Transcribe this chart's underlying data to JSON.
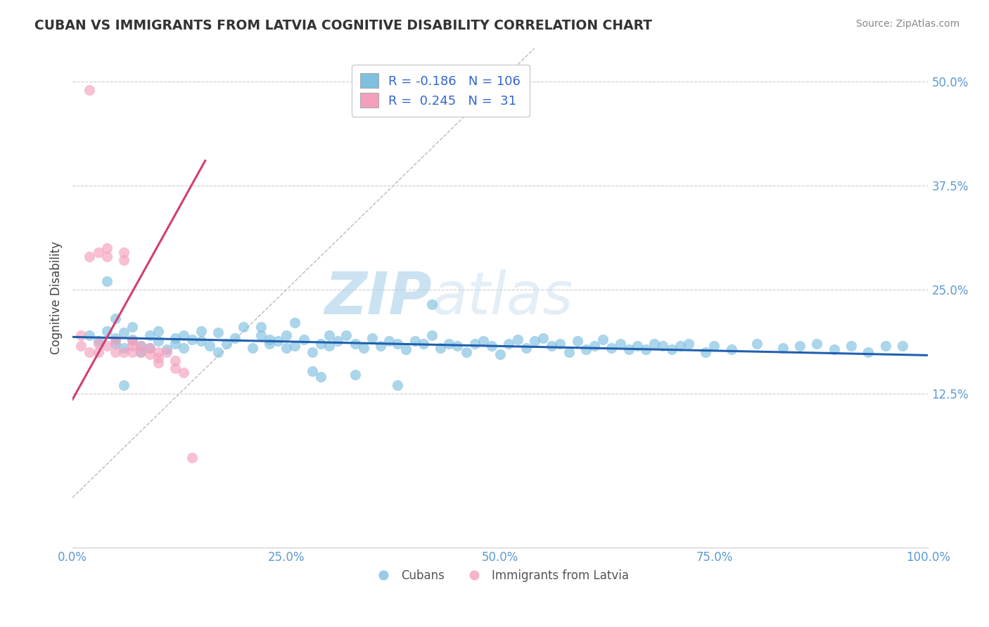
{
  "title": "CUBAN VS IMMIGRANTS FROM LATVIA COGNITIVE DISABILITY CORRELATION CHART",
  "source": "Source: ZipAtlas.com",
  "ylabel": "Cognitive Disability",
  "xlim": [
    0.0,
    1.0
  ],
  "ylim": [
    -0.06,
    0.54
  ],
  "yticks": [
    0.125,
    0.25,
    0.375,
    0.5
  ],
  "ytick_labels": [
    "12.5%",
    "25.0%",
    "37.5%",
    "50.0%"
  ],
  "xticks": [
    0.0,
    0.25,
    0.5,
    0.75,
    1.0
  ],
  "xtick_labels": [
    "0.0%",
    "25.0%",
    "50.0%",
    "75.0%",
    "100.0%"
  ],
  "blue_color": "#7fbfdf",
  "pink_color": "#f4a0bc",
  "blue_line_color": "#2060b0",
  "pink_line_color": "#d04070",
  "watermark_zip": "ZIP",
  "watermark_atlas": "atlas",
  "legend_R_blue": "-0.186",
  "legend_N_blue": "106",
  "legend_R_pink": "0.245",
  "legend_N_pink": "31",
  "blue_slope": -0.022,
  "blue_intercept": 0.193,
  "pink_slope": 1.85,
  "pink_intercept": 0.118,
  "pink_line_x0": 0.0,
  "pink_line_x1": 0.155,
  "blue_scatter_x": [
    0.02,
    0.03,
    0.04,
    0.05,
    0.05,
    0.06,
    0.06,
    0.07,
    0.07,
    0.08,
    0.08,
    0.09,
    0.09,
    0.1,
    0.1,
    0.11,
    0.12,
    0.12,
    0.13,
    0.13,
    0.14,
    0.15,
    0.15,
    0.16,
    0.17,
    0.17,
    0.18,
    0.19,
    0.2,
    0.21,
    0.22,
    0.23,
    0.23,
    0.24,
    0.25,
    0.25,
    0.26,
    0.27,
    0.28,
    0.29,
    0.3,
    0.3,
    0.31,
    0.32,
    0.33,
    0.34,
    0.35,
    0.36,
    0.37,
    0.38,
    0.39,
    0.4,
    0.41,
    0.42,
    0.43,
    0.44,
    0.45,
    0.46,
    0.47,
    0.48,
    0.49,
    0.5,
    0.51,
    0.52,
    0.53,
    0.54,
    0.55,
    0.56,
    0.57,
    0.58,
    0.59,
    0.6,
    0.61,
    0.62,
    0.63,
    0.64,
    0.65,
    0.66,
    0.67,
    0.68,
    0.69,
    0.7,
    0.71,
    0.72,
    0.74,
    0.75,
    0.77,
    0.8,
    0.83,
    0.85,
    0.87,
    0.89,
    0.91,
    0.93,
    0.95,
    0.97,
    0.04,
    0.05,
    0.06,
    0.22,
    0.26,
    0.28,
    0.29,
    0.33,
    0.38,
    0.42
  ],
  "blue_scatter_y": [
    0.195,
    0.188,
    0.2,
    0.192,
    0.185,
    0.198,
    0.18,
    0.19,
    0.205,
    0.182,
    0.175,
    0.195,
    0.18,
    0.2,
    0.188,
    0.178,
    0.192,
    0.185,
    0.195,
    0.18,
    0.19,
    0.2,
    0.188,
    0.182,
    0.198,
    0.175,
    0.185,
    0.192,
    0.205,
    0.18,
    0.195,
    0.19,
    0.185,
    0.188,
    0.18,
    0.195,
    0.182,
    0.19,
    0.175,
    0.185,
    0.195,
    0.182,
    0.188,
    0.195,
    0.185,
    0.18,
    0.192,
    0.182,
    0.188,
    0.185,
    0.178,
    0.188,
    0.185,
    0.195,
    0.18,
    0.185,
    0.182,
    0.175,
    0.185,
    0.188,
    0.182,
    0.172,
    0.185,
    0.19,
    0.18,
    0.188,
    0.192,
    0.182,
    0.185,
    0.175,
    0.188,
    0.178,
    0.182,
    0.19,
    0.18,
    0.185,
    0.178,
    0.182,
    0.178,
    0.185,
    0.182,
    0.178,
    0.182,
    0.185,
    0.175,
    0.182,
    0.178,
    0.185,
    0.18,
    0.182,
    0.185,
    0.178,
    0.182,
    0.175,
    0.182,
    0.182,
    0.26,
    0.215,
    0.135,
    0.205,
    0.21,
    0.152,
    0.145,
    0.148,
    0.135,
    0.232
  ],
  "pink_scatter_x": [
    0.01,
    0.01,
    0.02,
    0.02,
    0.02,
    0.03,
    0.03,
    0.03,
    0.04,
    0.04,
    0.04,
    0.05,
    0.05,
    0.06,
    0.06,
    0.06,
    0.07,
    0.07,
    0.07,
    0.08,
    0.08,
    0.09,
    0.09,
    0.1,
    0.1,
    0.1,
    0.11,
    0.12,
    0.12,
    0.13,
    0.14
  ],
  "pink_scatter_y": [
    0.195,
    0.182,
    0.49,
    0.29,
    0.175,
    0.295,
    0.185,
    0.175,
    0.3,
    0.29,
    0.182,
    0.188,
    0.175,
    0.295,
    0.285,
    0.175,
    0.188,
    0.175,
    0.182,
    0.182,
    0.175,
    0.18,
    0.172,
    0.175,
    0.168,
    0.162,
    0.175,
    0.165,
    0.155,
    0.15,
    0.048
  ]
}
